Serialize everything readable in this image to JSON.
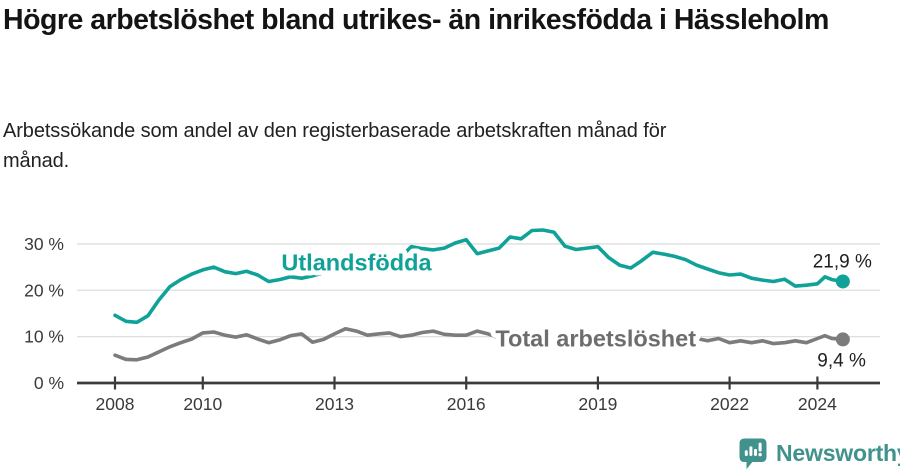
{
  "header": {
    "title": "Högre arbetslöshet bland utrikes- än inrikesfödda i Hässleholm",
    "subtitle": "Arbetssökande som andel av den registerbaserade arbetskraften månad för månad."
  },
  "chart_data": {
    "type": "line",
    "title": "Högre arbetslöshet bland utrikes- än inrikesfödda i Hässleholm",
    "xlabel": "",
    "ylabel": "",
    "unit": "%",
    "grid": "horizontal",
    "x_axis": {
      "ticks": [
        2008,
        2010,
        2013,
        2016,
        2019,
        2022,
        2024
      ],
      "range": [
        2007.2,
        2025.4
      ]
    },
    "y_axis": {
      "range": [
        0,
        35
      ],
      "gridlines": [
        {
          "value": 0,
          "label": "0 %"
        },
        {
          "value": 10,
          "label": "10 %"
        },
        {
          "value": 20,
          "label": "20 %"
        },
        {
          "value": 30,
          "label": "30 %"
        }
      ]
    },
    "x": [
      2008.0,
      2008.25,
      2008.5,
      2008.75,
      2009.0,
      2009.25,
      2009.5,
      2009.75,
      2010.0,
      2010.25,
      2010.5,
      2010.75,
      2011.0,
      2011.25,
      2011.5,
      2011.75,
      2012.0,
      2012.25,
      2012.5,
      2012.75,
      2013.0,
      2013.25,
      2013.5,
      2013.75,
      2014.0,
      2014.25,
      2014.5,
      2014.75,
      2015.0,
      2015.25,
      2015.5,
      2015.75,
      2016.0,
      2016.25,
      2016.5,
      2016.75,
      2017.0,
      2017.25,
      2017.5,
      2017.75,
      2018.0,
      2018.25,
      2018.5,
      2018.75,
      2019.0,
      2019.25,
      2019.5,
      2019.75,
      2020.0,
      2020.25,
      2020.5,
      2020.75,
      2021.0,
      2021.25,
      2021.5,
      2021.75,
      2022.0,
      2022.25,
      2022.5,
      2022.75,
      2023.0,
      2023.25,
      2023.5,
      2023.75,
      2024.0,
      2024.17,
      2024.33,
      2024.58
    ],
    "series": [
      {
        "name": "Utlandsfödda",
        "color": "#10a298",
        "label_color": "#10a298",
        "label_x": 2013.5,
        "label_y": 24.3,
        "end_label": "21,9 %",
        "end_label_position": "above",
        "values": [
          14.6,
          13.3,
          13.1,
          14.5,
          17.9,
          20.8,
          22.3,
          23.5,
          24.4,
          25.0,
          24.0,
          23.6,
          24.1,
          23.3,
          21.9,
          22.3,
          22.9,
          22.6,
          23.1,
          23.8,
          24.2,
          24.6,
          24.9,
          25.2,
          25.5,
          26.0,
          27.1,
          29.4,
          29.0,
          28.7,
          29.1,
          30.2,
          30.9,
          27.9,
          28.5,
          29.1,
          31.5,
          31.1,
          32.9,
          33.0,
          32.5,
          29.5,
          28.8,
          29.1,
          29.4,
          27.0,
          25.4,
          24.8,
          26.4,
          28.2,
          27.8,
          27.3,
          26.6,
          25.4,
          24.6,
          23.8,
          23.3,
          23.5,
          22.6,
          22.2,
          21.9,
          22.4,
          20.9,
          21.1,
          21.4,
          22.9,
          22.3,
          21.9
        ]
      },
      {
        "name": "Total arbetslöshet",
        "color": "#7c7c7c",
        "label_color": "#6d6d6d",
        "label_x": 2018.95,
        "label_y": 7.9,
        "end_label": "9,4 %",
        "end_label_position": "below",
        "values": [
          6.0,
          5.1,
          5.0,
          5.6,
          6.7,
          7.8,
          8.7,
          9.5,
          10.8,
          11.0,
          10.3,
          9.9,
          10.4,
          9.5,
          8.7,
          9.3,
          10.2,
          10.6,
          8.8,
          9.4,
          10.6,
          11.7,
          11.2,
          10.3,
          10.6,
          10.8,
          10.0,
          10.3,
          10.9,
          11.2,
          10.5,
          10.3,
          10.3,
          11.2,
          10.6,
          9.7,
          9.9,
          10.1,
          10.3,
          10.4,
          10.0,
          9.8,
          9.7,
          9.9,
          9.8,
          9.6,
          9.5,
          9.7,
          10.0,
          10.4,
          10.2,
          10.0,
          9.8,
          9.6,
          9.1,
          9.6,
          8.7,
          9.1,
          8.7,
          9.1,
          8.5,
          8.7,
          9.1,
          8.7,
          9.6,
          10.2,
          9.6,
          9.4
        ]
      }
    ]
  },
  "footer": {
    "brand": "Newsworthy",
    "brand_color": "#41918c",
    "icon": "speech-bubble-bar-chart-icon"
  }
}
